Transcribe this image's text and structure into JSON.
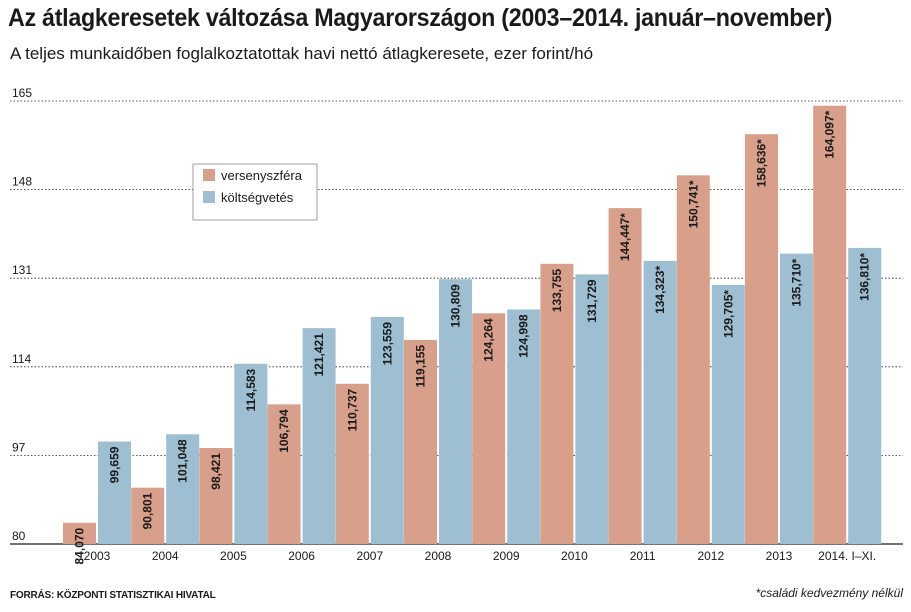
{
  "title": "Az átlagkeresetek változása Magyarországon (2003–2014. január–november)",
  "subtitle": "A teljes munkaidőben foglalkoztatottak havi nettó átlagkeresete, ezer forint/hó",
  "source": "FORRÁS: KÖZPONTI STATISZTIKAI HIVATAL",
  "footnote": "*családi kedvezmény nélkül",
  "colors": {
    "versenyszfera": "#d8a08a",
    "koltsegvetes": "#9dbfd1"
  },
  "chart_data": {
    "type": "bar",
    "categories": [
      "2003",
      "2004",
      "2005",
      "2006",
      "2007",
      "2008",
      "2009",
      "2010",
      "2011",
      "2012",
      "2013",
      "2014. I–XI."
    ],
    "series": [
      {
        "name": "versenyszféra",
        "values": [
          84.07,
          90.801,
          98.421,
          106.794,
          110.737,
          119.155,
          124.264,
          133.755,
          144.447,
          150.741,
          158.636,
          164.097
        ],
        "labels": [
          "84,070",
          "90,801",
          "98,421",
          "106,794",
          "110,737",
          "119,155",
          "124,264",
          "133,755",
          "144,447*",
          "150,741*",
          "158,636*",
          "164,097*"
        ]
      },
      {
        "name": "költségvetés",
        "values": [
          99.659,
          101.048,
          114.583,
          121.421,
          123.559,
          130.809,
          124.998,
          131.729,
          134.323,
          129.705,
          135.71,
          136.81
        ],
        "labels": [
          "99,659",
          "101,048",
          "114,583",
          "121,421",
          "123,559",
          "130,809",
          "124,998",
          "131,729",
          "134,323*",
          "129,705*",
          "135,710*",
          "136,810*"
        ]
      }
    ],
    "yticks": [
      80,
      97,
      114,
      131,
      148,
      165
    ],
    "ylim": [
      80,
      165
    ],
    "grid": true,
    "legend": "top-left"
  }
}
